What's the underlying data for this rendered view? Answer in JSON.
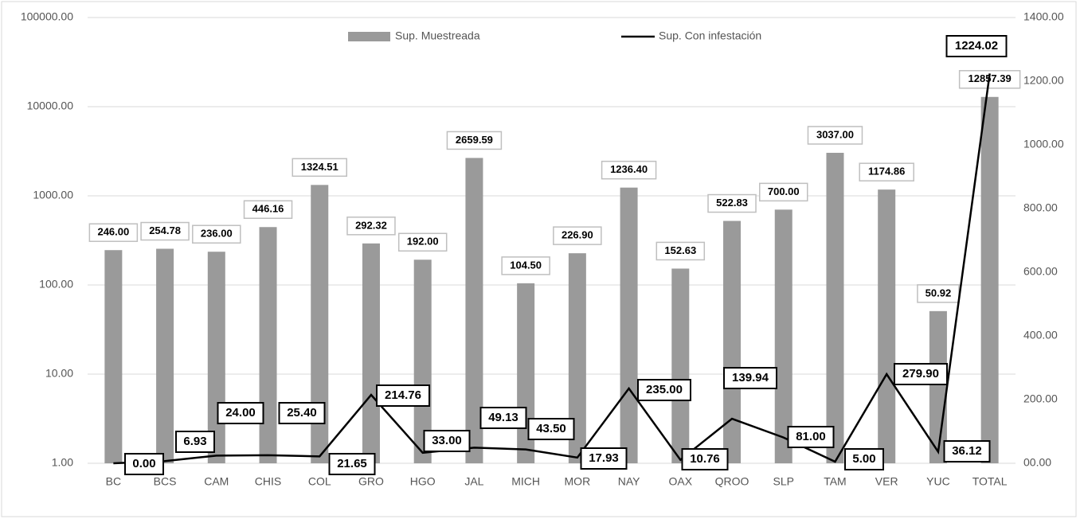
{
  "chart_data": {
    "type": "bar_line",
    "categories": [
      "BC",
      "BCS",
      "CAM",
      "CHIS",
      "COL",
      "GRO",
      "HGO",
      "JAL",
      "MICH",
      "MOR",
      "NAY",
      "OAX",
      "QROO",
      "SLP",
      "TAM",
      "VER",
      "YUC",
      "TOTAL"
    ],
    "series": [
      {
        "name": "Sup. Muestreada",
        "type": "bar",
        "color": "#9a9a9a",
        "values": [
          246.0,
          254.78,
          236.0,
          446.16,
          1324.51,
          292.32,
          192.0,
          2659.59,
          104.5,
          226.9,
          1236.4,
          152.63,
          522.83,
          700.0,
          3037.0,
          1174.86,
          50.92,
          12857.39
        ],
        "value_labels": [
          "246.00",
          "254.78",
          "236.00",
          "446.16",
          "1324.51",
          "292.32",
          "192.00",
          "2659.59",
          "104.50",
          "226.90",
          "1236.40",
          "152.63",
          "522.83",
          "700.00",
          "3037.00",
          "1174.86",
          "50.92",
          "12857.39"
        ]
      },
      {
        "name": "Sup. Con infestación",
        "type": "line",
        "axis": "y2",
        "color": "#000000",
        "values": [
          0.0,
          6.93,
          24.0,
          25.4,
          21.65,
          214.76,
          33.0,
          49.13,
          43.5,
          17.93,
          235.0,
          10.76,
          139.94,
          81.0,
          5.0,
          279.9,
          36.12,
          1224.02
        ],
        "value_labels": [
          "0.00",
          "6.93",
          "24.00",
          "25.40",
          "21.65",
          "214.76",
          "33.00",
          "49.13",
          "43.50",
          "17.93",
          "235.00",
          "10.76",
          "139.94",
          "81.00",
          "5.00",
          "279.90",
          "36.12",
          "1224.02"
        ]
      }
    ],
    "yscale": "log",
    "ylim": [
      1,
      100000
    ],
    "yticks": [
      {
        "value": 1,
        "label": "1.00"
      },
      {
        "value": 10,
        "label": "10.00"
      },
      {
        "value": 100,
        "label": "100.00"
      },
      {
        "value": 1000,
        "label": "1000.00"
      },
      {
        "value": 10000,
        "label": "10000.00"
      },
      {
        "value": 100000,
        "label": "100000.00"
      }
    ],
    "y2lim": [
      0,
      1400
    ],
    "y2ticks": [
      {
        "value": 0,
        "label": "00.00"
      },
      {
        "value": 200,
        "label": "200.00"
      },
      {
        "value": 400,
        "label": "400.00"
      },
      {
        "value": 600,
        "label": "600.00"
      },
      {
        "value": 800,
        "label": "800.00"
      },
      {
        "value": 1000,
        "label": "1000.00"
      },
      {
        "value": 1200,
        "label": "1200.00"
      },
      {
        "value": 1400,
        "label": "1400.00"
      }
    ],
    "grid": true,
    "legend": "top"
  }
}
